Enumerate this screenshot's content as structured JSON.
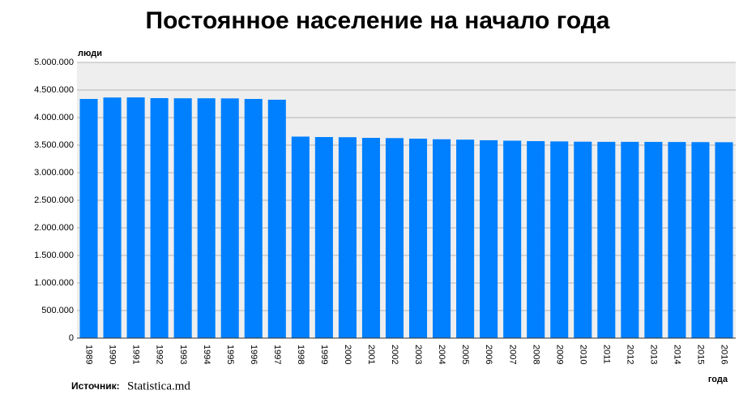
{
  "chart_data": {
    "type": "bar",
    "title": "Постоянное население на начало года",
    "y_label": "люди",
    "x_label": "года",
    "source_label": "Источник:",
    "source": "Statistica.md",
    "categories": [
      "1989",
      "1990",
      "1991",
      "1992",
      "1993",
      "1994",
      "1995",
      "1996",
      "1997",
      "1998",
      "1999",
      "2000",
      "2001",
      "2002",
      "2003",
      "2004",
      "2005",
      "2006",
      "2007",
      "2008",
      "2009",
      "2010",
      "2011",
      "2012",
      "2013",
      "2014",
      "2015",
      "2016"
    ],
    "values": [
      4338000,
      4364000,
      4366000,
      4353000,
      4350000,
      4350000,
      4348000,
      4338000,
      4324000,
      3655000,
      3647000,
      3644000,
      3632000,
      3628000,
      3618000,
      3607000,
      3600000,
      3589000,
      3581000,
      3573000,
      3568000,
      3563000,
      3560000,
      3560000,
      3559000,
      3557000,
      3555000,
      3553000
    ],
    "color": "#0080ff",
    "ylim": [
      0,
      5000000
    ],
    "yticks": [
      0,
      {
        "value": 500000,
        "label": "500.000"
      },
      {
        "value": 1000000,
        "label": "1.000.000"
      },
      {
        "value": 1500000,
        "label": "1.500.000"
      },
      {
        "value": 2000000,
        "label": "2.000.000"
      },
      {
        "value": 2500000,
        "label": "2.500.000"
      },
      {
        "value": 3000000,
        "label": "3.000.000"
      },
      {
        "value": 3500000,
        "label": "3.500.000"
      },
      {
        "value": 4000000,
        "label": "4.000.000"
      },
      {
        "value": 4500000,
        "label": "4.500.000"
      },
      {
        "value": 5000000,
        "label": "5.000.000"
      }
    ],
    "grid": true
  }
}
